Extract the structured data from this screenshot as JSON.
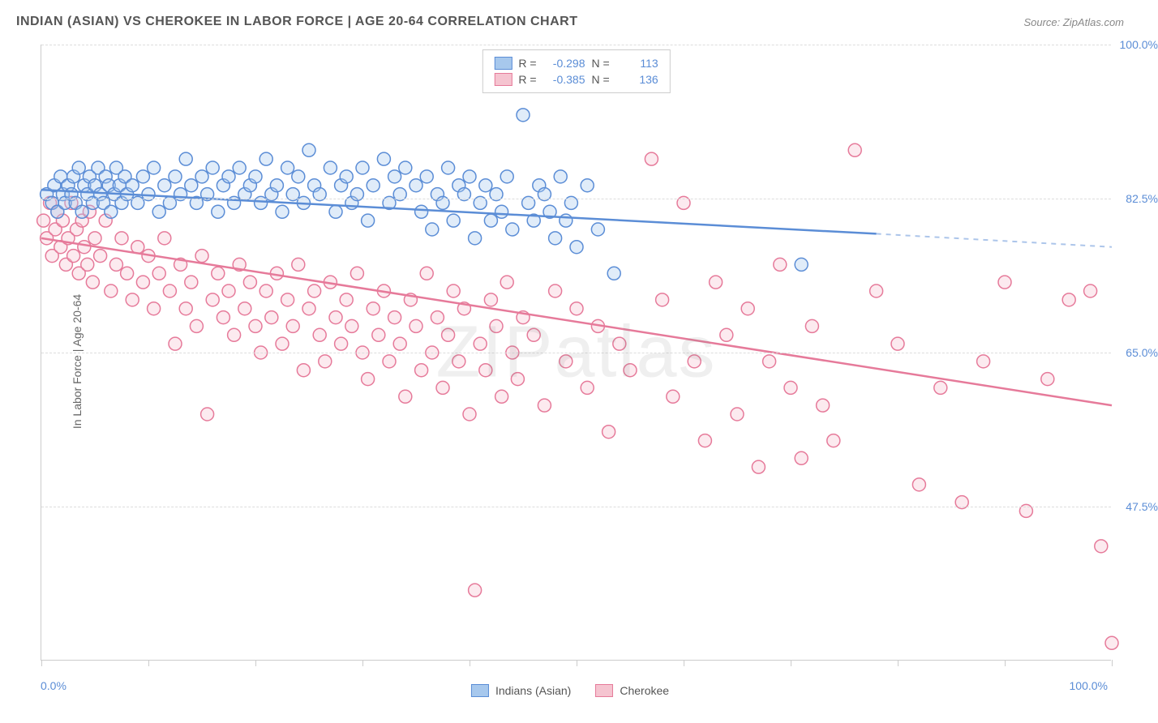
{
  "title": "INDIAN (ASIAN) VS CHEROKEE IN LABOR FORCE | AGE 20-64 CORRELATION CHART",
  "source": "Source: ZipAtlas.com",
  "watermark": "ZIPatlas",
  "y_axis_title": "In Labor Force | Age 20-64",
  "chart": {
    "type": "scatter",
    "xlim": [
      0,
      100
    ],
    "ylim": [
      30,
      100
    ],
    "y_ticks": [
      47.5,
      65.0,
      82.5,
      100.0
    ],
    "y_tick_labels": [
      "47.5%",
      "65.0%",
      "82.5%",
      "100.0%"
    ],
    "x_ticks": [
      0,
      10,
      20,
      30,
      40,
      50,
      60,
      70,
      80,
      90,
      100
    ],
    "x_label_min": "0.0%",
    "x_label_max": "100.0%",
    "background_color": "#ffffff",
    "grid_color": "#dddddd",
    "marker_radius": 8,
    "line_width": 2.5,
    "series": [
      {
        "name": "Indians (Asian)",
        "color_fill": "#a7c8ed",
        "color_stroke": "#5b8dd6",
        "R": "-0.298",
        "N": "113",
        "trend": {
          "x1": 0,
          "y1": 83.5,
          "x2_solid": 78,
          "y2_solid": 78.5,
          "x2_dash": 100,
          "y2_dash": 77.0
        },
        "points": [
          [
            0.5,
            83
          ],
          [
            1,
            82
          ],
          [
            1.2,
            84
          ],
          [
            1.5,
            81
          ],
          [
            1.8,
            85
          ],
          [
            2,
            83
          ],
          [
            2.2,
            82
          ],
          [
            2.5,
            84
          ],
          [
            2.8,
            83
          ],
          [
            3,
            85
          ],
          [
            3.2,
            82
          ],
          [
            3.5,
            86
          ],
          [
            3.8,
            81
          ],
          [
            4,
            84
          ],
          [
            4.3,
            83
          ],
          [
            4.5,
            85
          ],
          [
            4.8,
            82
          ],
          [
            5,
            84
          ],
          [
            5.3,
            86
          ],
          [
            5.5,
            83
          ],
          [
            5.8,
            82
          ],
          [
            6,
            85
          ],
          [
            6.3,
            84
          ],
          [
            6.5,
            81
          ],
          [
            6.8,
            83
          ],
          [
            7,
            86
          ],
          [
            7.3,
            84
          ],
          [
            7.5,
            82
          ],
          [
            7.8,
            85
          ],
          [
            8,
            83
          ],
          [
            8.5,
            84
          ],
          [
            9,
            82
          ],
          [
            9.5,
            85
          ],
          [
            10,
            83
          ],
          [
            10.5,
            86
          ],
          [
            11,
            81
          ],
          [
            11.5,
            84
          ],
          [
            12,
            82
          ],
          [
            12.5,
            85
          ],
          [
            13,
            83
          ],
          [
            13.5,
            87
          ],
          [
            14,
            84
          ],
          [
            14.5,
            82
          ],
          [
            15,
            85
          ],
          [
            15.5,
            83
          ],
          [
            16,
            86
          ],
          [
            16.5,
            81
          ],
          [
            17,
            84
          ],
          [
            17.5,
            85
          ],
          [
            18,
            82
          ],
          [
            18.5,
            86
          ],
          [
            19,
            83
          ],
          [
            19.5,
            84
          ],
          [
            20,
            85
          ],
          [
            20.5,
            82
          ],
          [
            21,
            87
          ],
          [
            21.5,
            83
          ],
          [
            22,
            84
          ],
          [
            22.5,
            81
          ],
          [
            23,
            86
          ],
          [
            23.5,
            83
          ],
          [
            24,
            85
          ],
          [
            24.5,
            82
          ],
          [
            25,
            88
          ],
          [
            25.5,
            84
          ],
          [
            26,
            83
          ],
          [
            27,
            86
          ],
          [
            27.5,
            81
          ],
          [
            28,
            84
          ],
          [
            28.5,
            85
          ],
          [
            29,
            82
          ],
          [
            29.5,
            83
          ],
          [
            30,
            86
          ],
          [
            30.5,
            80
          ],
          [
            31,
            84
          ],
          [
            32,
            87
          ],
          [
            32.5,
            82
          ],
          [
            33,
            85
          ],
          [
            33.5,
            83
          ],
          [
            34,
            86
          ],
          [
            35,
            84
          ],
          [
            35.5,
            81
          ],
          [
            36,
            85
          ],
          [
            36.5,
            79
          ],
          [
            37,
            83
          ],
          [
            37.5,
            82
          ],
          [
            38,
            86
          ],
          [
            38.5,
            80
          ],
          [
            39,
            84
          ],
          [
            39.5,
            83
          ],
          [
            40,
            85
          ],
          [
            40.5,
            78
          ],
          [
            41,
            82
          ],
          [
            41.5,
            84
          ],
          [
            42,
            80
          ],
          [
            42.5,
            83
          ],
          [
            43,
            81
          ],
          [
            43.5,
            85
          ],
          [
            44,
            79
          ],
          [
            45,
            92
          ],
          [
            45.5,
            82
          ],
          [
            46,
            80
          ],
          [
            46.5,
            84
          ],
          [
            47,
            83
          ],
          [
            47.5,
            81
          ],
          [
            48,
            78
          ],
          [
            48.5,
            85
          ],
          [
            49,
            80
          ],
          [
            49.5,
            82
          ],
          [
            50,
            77
          ],
          [
            51,
            84
          ],
          [
            52,
            79
          ],
          [
            53.5,
            74
          ],
          [
            71,
            75
          ]
        ]
      },
      {
        "name": "Cherokee",
        "color_fill": "#f5c4d0",
        "color_stroke": "#e67a9a",
        "R": "-0.385",
        "N": "136",
        "trend": {
          "x1": 0,
          "y1": 78.0,
          "x2_solid": 100,
          "y2_solid": 59.0,
          "x2_dash": 100,
          "y2_dash": 59.0
        },
        "points": [
          [
            0.2,
            80
          ],
          [
            0.5,
            78
          ],
          [
            0.8,
            82
          ],
          [
            1,
            76
          ],
          [
            1.3,
            79
          ],
          [
            1.5,
            81
          ],
          [
            1.8,
            77
          ],
          [
            2,
            80
          ],
          [
            2.3,
            75
          ],
          [
            2.5,
            78
          ],
          [
            2.8,
            82
          ],
          [
            3,
            76
          ],
          [
            3.3,
            79
          ],
          [
            3.5,
            74
          ],
          [
            3.8,
            80
          ],
          [
            4,
            77
          ],
          [
            4.3,
            75
          ],
          [
            4.5,
            81
          ],
          [
            4.8,
            73
          ],
          [
            5,
            78
          ],
          [
            5.5,
            76
          ],
          [
            6,
            80
          ],
          [
            6.5,
            72
          ],
          [
            7,
            75
          ],
          [
            7.5,
            78
          ],
          [
            8,
            74
          ],
          [
            8.5,
            71
          ],
          [
            9,
            77
          ],
          [
            9.5,
            73
          ],
          [
            10,
            76
          ],
          [
            10.5,
            70
          ],
          [
            11,
            74
          ],
          [
            11.5,
            78
          ],
          [
            12,
            72
          ],
          [
            12.5,
            66
          ],
          [
            13,
            75
          ],
          [
            13.5,
            70
          ],
          [
            14,
            73
          ],
          [
            14.5,
            68
          ],
          [
            15,
            76
          ],
          [
            15.5,
            58
          ],
          [
            16,
            71
          ],
          [
            16.5,
            74
          ],
          [
            17,
            69
          ],
          [
            17.5,
            72
          ],
          [
            18,
            67
          ],
          [
            18.5,
            75
          ],
          [
            19,
            70
          ],
          [
            19.5,
            73
          ],
          [
            20,
            68
          ],
          [
            20.5,
            65
          ],
          [
            21,
            72
          ],
          [
            21.5,
            69
          ],
          [
            22,
            74
          ],
          [
            22.5,
            66
          ],
          [
            23,
            71
          ],
          [
            23.5,
            68
          ],
          [
            24,
            75
          ],
          [
            24.5,
            63
          ],
          [
            25,
            70
          ],
          [
            25.5,
            72
          ],
          [
            26,
            67
          ],
          [
            26.5,
            64
          ],
          [
            27,
            73
          ],
          [
            27.5,
            69
          ],
          [
            28,
            66
          ],
          [
            28.5,
            71
          ],
          [
            29,
            68
          ],
          [
            29.5,
            74
          ],
          [
            30,
            65
          ],
          [
            30.5,
            62
          ],
          [
            31,
            70
          ],
          [
            31.5,
            67
          ],
          [
            32,
            72
          ],
          [
            32.5,
            64
          ],
          [
            33,
            69
          ],
          [
            33.5,
            66
          ],
          [
            34,
            60
          ],
          [
            34.5,
            71
          ],
          [
            35,
            68
          ],
          [
            35.5,
            63
          ],
          [
            36,
            74
          ],
          [
            36.5,
            65
          ],
          [
            37,
            69
          ],
          [
            37.5,
            61
          ],
          [
            38,
            67
          ],
          [
            38.5,
            72
          ],
          [
            39,
            64
          ],
          [
            39.5,
            70
          ],
          [
            40,
            58
          ],
          [
            40.5,
            38
          ],
          [
            41,
            66
          ],
          [
            41.5,
            63
          ],
          [
            42,
            71
          ],
          [
            42.5,
            68
          ],
          [
            43,
            60
          ],
          [
            43.5,
            73
          ],
          [
            44,
            65
          ],
          [
            44.5,
            62
          ],
          [
            45,
            69
          ],
          [
            46,
            67
          ],
          [
            47,
            59
          ],
          [
            48,
            72
          ],
          [
            49,
            64
          ],
          [
            50,
            70
          ],
          [
            51,
            61
          ],
          [
            52,
            68
          ],
          [
            53,
            56
          ],
          [
            54,
            66
          ],
          [
            55,
            63
          ],
          [
            57,
            87
          ],
          [
            58,
            71
          ],
          [
            59,
            60
          ],
          [
            60,
            82
          ],
          [
            61,
            64
          ],
          [
            62,
            55
          ],
          [
            63,
            73
          ],
          [
            64,
            67
          ],
          [
            65,
            58
          ],
          [
            66,
            70
          ],
          [
            67,
            52
          ],
          [
            68,
            64
          ],
          [
            69,
            75
          ],
          [
            70,
            61
          ],
          [
            71,
            53
          ],
          [
            72,
            68
          ],
          [
            73,
            59
          ],
          [
            74,
            55
          ],
          [
            76,
            88
          ],
          [
            78,
            72
          ],
          [
            80,
            66
          ],
          [
            82,
            50
          ],
          [
            84,
            61
          ],
          [
            86,
            48
          ],
          [
            88,
            64
          ],
          [
            90,
            73
          ],
          [
            92,
            47
          ],
          [
            94,
            62
          ],
          [
            96,
            71
          ],
          [
            98,
            72
          ],
          [
            99,
            43
          ],
          [
            100,
            32
          ]
        ]
      }
    ]
  },
  "legend_bottom": [
    {
      "label": "Indians (Asian)",
      "fill": "#a7c8ed",
      "stroke": "#5b8dd6"
    },
    {
      "label": "Cherokee",
      "fill": "#f5c4d0",
      "stroke": "#e67a9a"
    }
  ]
}
